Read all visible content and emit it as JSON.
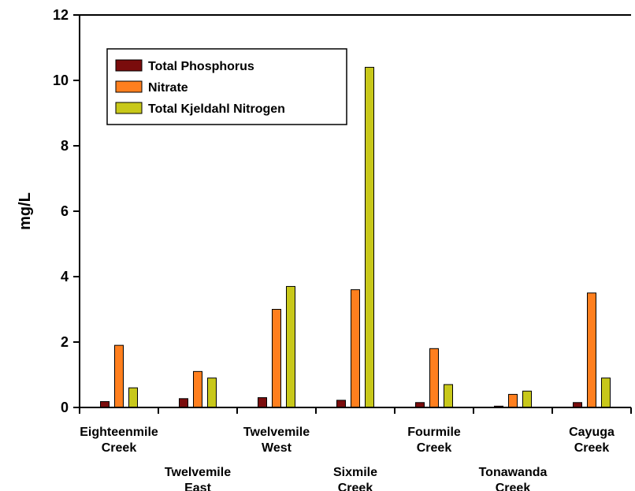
{
  "chart_data": {
    "type": "bar",
    "title": "",
    "xlabel": "",
    "ylabel": "mg/L",
    "ylim": [
      0,
      12
    ],
    "yticks": [
      0,
      2,
      4,
      6,
      8,
      10,
      12
    ],
    "grid": false,
    "legend_position": "top-left",
    "categories": [
      [
        "Eighteenmile",
        "Creek"
      ],
      [
        "Twelvemile",
        "East"
      ],
      [
        "Twelvemile",
        "West"
      ],
      [
        "Sixmile",
        "Creek"
      ],
      [
        "Fourmile",
        "Creek"
      ],
      [
        "Tonawanda",
        "Creek"
      ],
      [
        "Cayuga",
        "Creek"
      ]
    ],
    "series": [
      {
        "name": "Total Phosphorus",
        "color": "#7a0c0c",
        "values": [
          0.18,
          0.27,
          0.3,
          0.22,
          0.15,
          0.04,
          0.15
        ]
      },
      {
        "name": "Nitrate",
        "color": "#ff7f1e",
        "values": [
          1.9,
          1.1,
          3.0,
          3.6,
          1.8,
          0.4,
          3.5
        ]
      },
      {
        "name": "Total Kjeldahl Nitrogen",
        "color": "#c8c81a",
        "values": [
          0.6,
          0.9,
          3.7,
          10.4,
          0.7,
          0.5,
          0.9
        ]
      }
    ]
  }
}
